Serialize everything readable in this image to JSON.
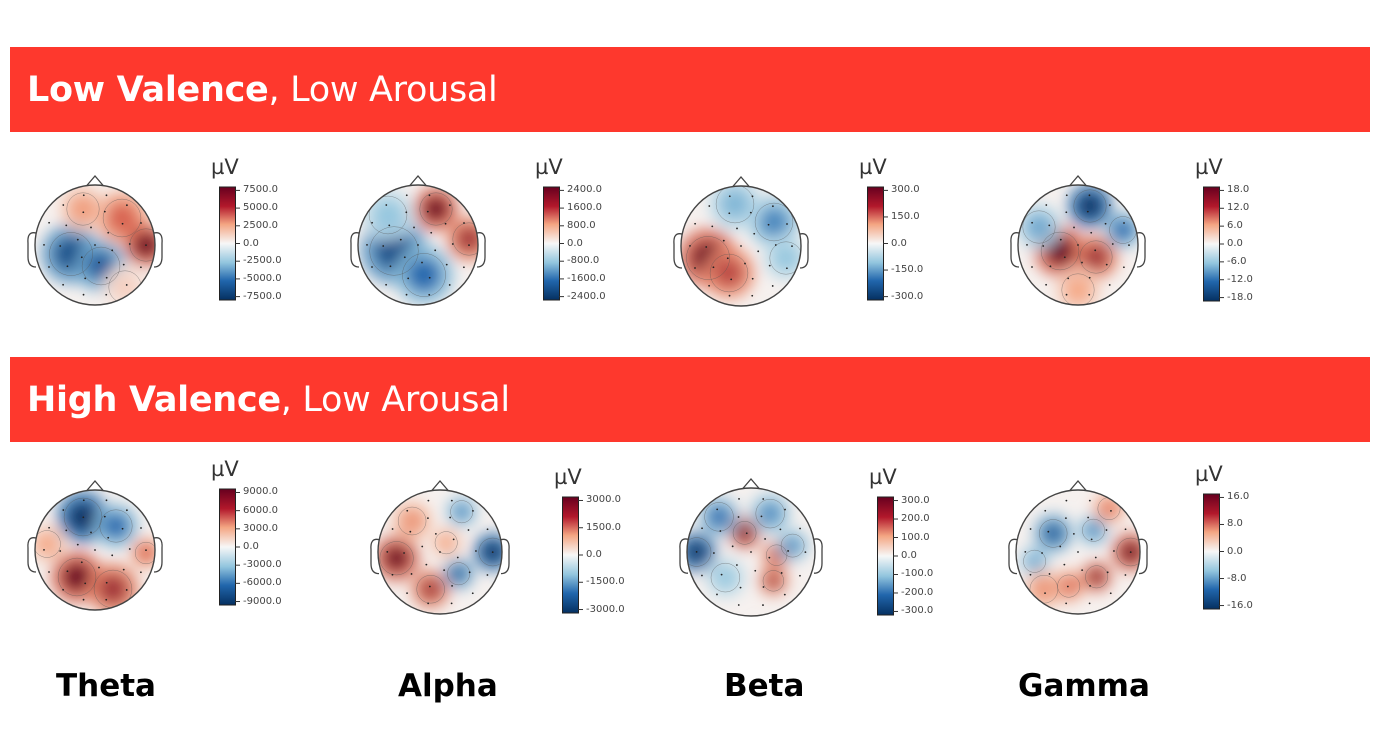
{
  "banners": [
    {
      "bold": "Low Valence",
      "rest": ", Low Arousal"
    },
    {
      "bold": "High Valence",
      "rest": ", Low Arousal"
    }
  ],
  "bands": [
    "Theta",
    "Alpha",
    "Beta",
    "Gamma"
  ],
  "unit": "µV",
  "colorbars": [
    [
      {
        "ticks": [
          "7500.0",
          "5000.0",
          "2500.0",
          "0.0",
          "-2500.0",
          "-5000.0",
          "-7500.0"
        ]
      },
      {
        "ticks": [
          "2400.0",
          "1600.0",
          "800.0",
          "0.0",
          "-800.0",
          "-1600.0",
          "-2400.0"
        ]
      },
      {
        "ticks": [
          "300.0",
          "150.0",
          "0.0",
          "-150.0",
          "-300.0"
        ]
      },
      {
        "ticks": [
          "18.0",
          "12.0",
          "6.0",
          "0.0",
          "-6.0",
          "-12.0",
          "-18.0"
        ]
      }
    ],
    [
      {
        "ticks": [
          "9000.0",
          "6000.0",
          "3000.0",
          "0.0",
          "-3000.0",
          "-6000.0",
          "-9000.0"
        ]
      },
      {
        "ticks": [
          "3000.0",
          "1500.0",
          "0.0",
          "-1500.0",
          "-3000.0"
        ]
      },
      {
        "ticks": [
          "300.0",
          "200.0",
          "100.0",
          "0.0",
          "-100.0",
          "-200.0",
          "-300.0"
        ]
      },
      {
        "ticks": [
          "16.0",
          "8.0",
          "0.0",
          "-8.0",
          "-16.0"
        ]
      }
    ]
  ],
  "colors": {
    "banner": "#fe382d",
    "positive": "#b2182b",
    "negative": "#2166ac",
    "neutral": "#f7f7f7"
  }
}
